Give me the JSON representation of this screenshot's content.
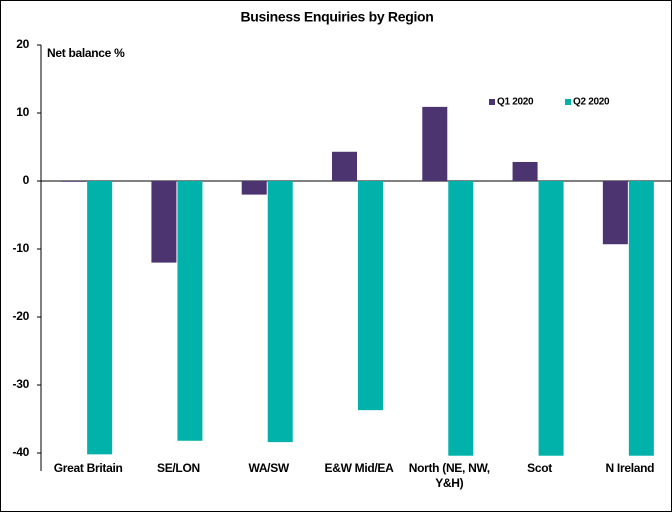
{
  "chart_data": {
    "type": "bar",
    "title": "Business Enquiries by Region",
    "y_axis_label": "Net balance %",
    "categories": [
      "Great Britain",
      "SE/LON",
      "WA/SW",
      "E&W Mid/EA",
      "North (NE, NW, Y&H)",
      "Scot",
      "N Ireland"
    ],
    "series": [
      {
        "name": "Q1 2020",
        "color": "#4b3470",
        "values": [
          0,
          -12,
          -2,
          4.3,
          10.9,
          2.8,
          -9.3
        ]
      },
      {
        "name": "Q2 2020",
        "color": "#00b2a9",
        "values": [
          -40.2,
          -38.2,
          -38.4,
          -33.7,
          -40.4,
          -40.4,
          -40.4
        ]
      }
    ],
    "ylim": [
      -40,
      20
    ],
    "yticks": [
      -40,
      -30,
      -20,
      -10,
      0,
      10,
      20
    ],
    "grid": false,
    "legend": "top-right"
  }
}
